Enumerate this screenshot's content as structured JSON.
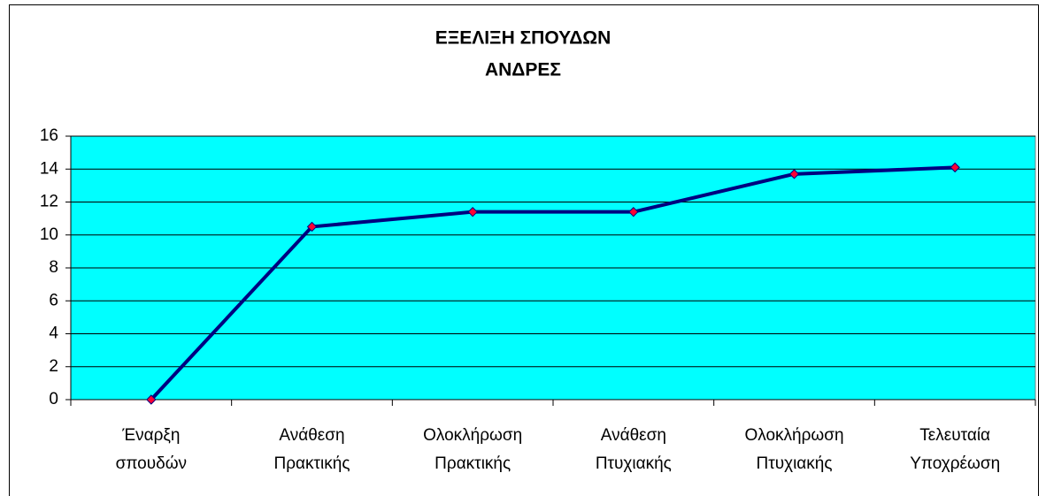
{
  "chart_data": {
    "type": "line",
    "title": "ΕΞΕΛΙΞΗ ΣΠΟΥΔΩΝ",
    "subtitle": "ΑΝΔΡΕΣ",
    "categories": [
      [
        "Έναρξη",
        "σπουδών"
      ],
      [
        "Ανάθεση",
        "Πρακτικής"
      ],
      [
        "Ολοκλήρωση",
        "Πρακτικής"
      ],
      [
        "Ανάθεση",
        "Πτυχιακής"
      ],
      [
        "Ολοκλήρωση",
        "Πτυχιακής"
      ],
      [
        "Τελευταία",
        "Υποχρέωση"
      ]
    ],
    "values": [
      0,
      10.5,
      11.4,
      11.4,
      13.7,
      14.1
    ],
    "color": "#000080",
    "marker_color": "#ff0033",
    "plot_background": "#00ffff",
    "ylim": [
      0,
      16
    ],
    "yticks": [
      0,
      2,
      4,
      6,
      8,
      10,
      12,
      14,
      16
    ],
    "grid": true
  }
}
